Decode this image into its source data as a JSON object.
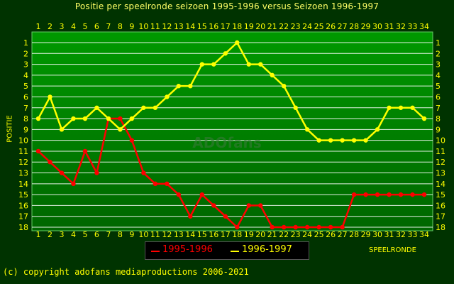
{
  "title": "Positie per speelronde seizoen 1995-1996 versus Seizoen 1996-1997",
  "copyright": "(c) copyright adofans mediaproductions 2006-2021",
  "watermark": "ADOfans",
  "colors": {
    "background": "#003300",
    "plot_fill_top": "#009900",
    "plot_fill_bottom": "#006600",
    "grid": "#ffffff",
    "axis_text": "#ffff00",
    "title": "#ffff66"
  },
  "chart_data": {
    "type": "line",
    "title": "Positie per speelronde seizoen 1995-1996 versus Seizoen 1996-1997",
    "xlabel": "SPEELRONDE",
    "ylabel": "POSITIE",
    "x": [
      1,
      2,
      3,
      4,
      5,
      6,
      7,
      8,
      9,
      10,
      11,
      12,
      13,
      14,
      15,
      16,
      17,
      18,
      19,
      20,
      21,
      22,
      23,
      24,
      25,
      26,
      27,
      28,
      29,
      30,
      31,
      32,
      33,
      34
    ],
    "xlim": [
      1,
      34
    ],
    "ylim": [
      18,
      1
    ],
    "y_inverted": true,
    "y_ticks": [
      1,
      2,
      3,
      4,
      5,
      6,
      7,
      8,
      9,
      10,
      11,
      12,
      13,
      14,
      15,
      16,
      17,
      18
    ],
    "grid": true,
    "legend_position": "bottom-center",
    "series": [
      {
        "name": "1995-1996",
        "color": "#ff0000",
        "values": [
          11,
          12,
          13,
          14,
          11,
          13,
          8,
          8,
          10,
          13,
          14,
          14,
          15,
          17,
          15,
          16,
          17,
          18,
          16,
          16,
          18,
          18,
          18,
          18,
          18,
          18,
          18,
          15,
          15,
          15,
          15,
          15,
          15,
          15
        ]
      },
      {
        "name": "1996-1997",
        "color": "#ffff00",
        "values": [
          8,
          6,
          9,
          8,
          8,
          7,
          8,
          9,
          8,
          7,
          7,
          6,
          5,
          5,
          3,
          3,
          2,
          1,
          3,
          3,
          4,
          5,
          7,
          9,
          10,
          10,
          10,
          10,
          10,
          9,
          7,
          7,
          7,
          8
        ]
      }
    ]
  }
}
